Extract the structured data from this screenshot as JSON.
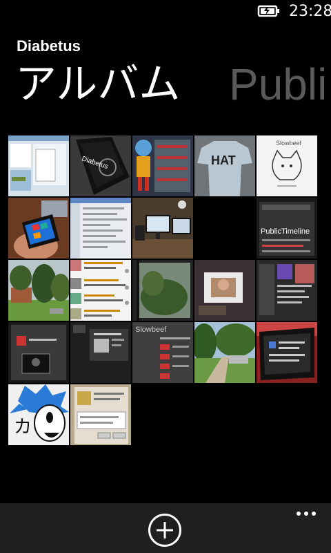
{
  "status_bar": {
    "time": "23:28",
    "battery_icon": "battery-charging-icon"
  },
  "header": {
    "app_title": "Diabetus"
  },
  "pivot": {
    "current": "アルバム",
    "next": "Publi"
  },
  "photos": [
    {
      "name": "screenshot-desktop",
      "bg": "#c7d3dc"
    },
    {
      "name": "phone-diabetus",
      "bg": "#222222",
      "text": "Diabetus"
    },
    {
      "name": "cartoon-figure",
      "bg": "#3a4b7a"
    },
    {
      "name": "shirt-hat",
      "bg": "#8a8f92",
      "text": "HAT"
    },
    {
      "name": "slowbeef-cat",
      "bg": "#f4f4f4",
      "text": "Slowbeef"
    },
    {
      "name": "phone-in-hand",
      "bg": "#7a3f2a"
    },
    {
      "name": "screenshot-settings",
      "bg": "#e8ecf0"
    },
    {
      "name": "monitors-desk",
      "bg": "#5a4a36"
    },
    {
      "name": "empty",
      "bg": "transparent"
    },
    {
      "name": "publictimeline-screen",
      "bg": "#2a2a2a",
      "text": "PublicTimeline"
    },
    {
      "name": "trees-lawn",
      "bg": "#6c8a5a"
    },
    {
      "name": "twitter-list",
      "bg": "#f0f0f0"
    },
    {
      "name": "window-view",
      "bg": "#4a5a40"
    },
    {
      "name": "monitor-photo",
      "bg": "#5b4a55"
    },
    {
      "name": "dark-app-screen",
      "bg": "#3a3a3a"
    },
    {
      "name": "tablet-screen",
      "bg": "#2c2c2c"
    },
    {
      "name": "dark-dialog",
      "bg": "#3a3a3a"
    },
    {
      "name": "slowbeef-dark",
      "bg": "#454545",
      "text": "Slowbeef"
    },
    {
      "name": "street-sidewalk",
      "bg": "#6f8a58"
    },
    {
      "name": "red-tablet",
      "bg": "#b32a2a"
    },
    {
      "name": "drawing-face",
      "bg": "#f2f2f2"
    },
    {
      "name": "screen-dialog",
      "bg": "#c9b49a"
    }
  ]
}
